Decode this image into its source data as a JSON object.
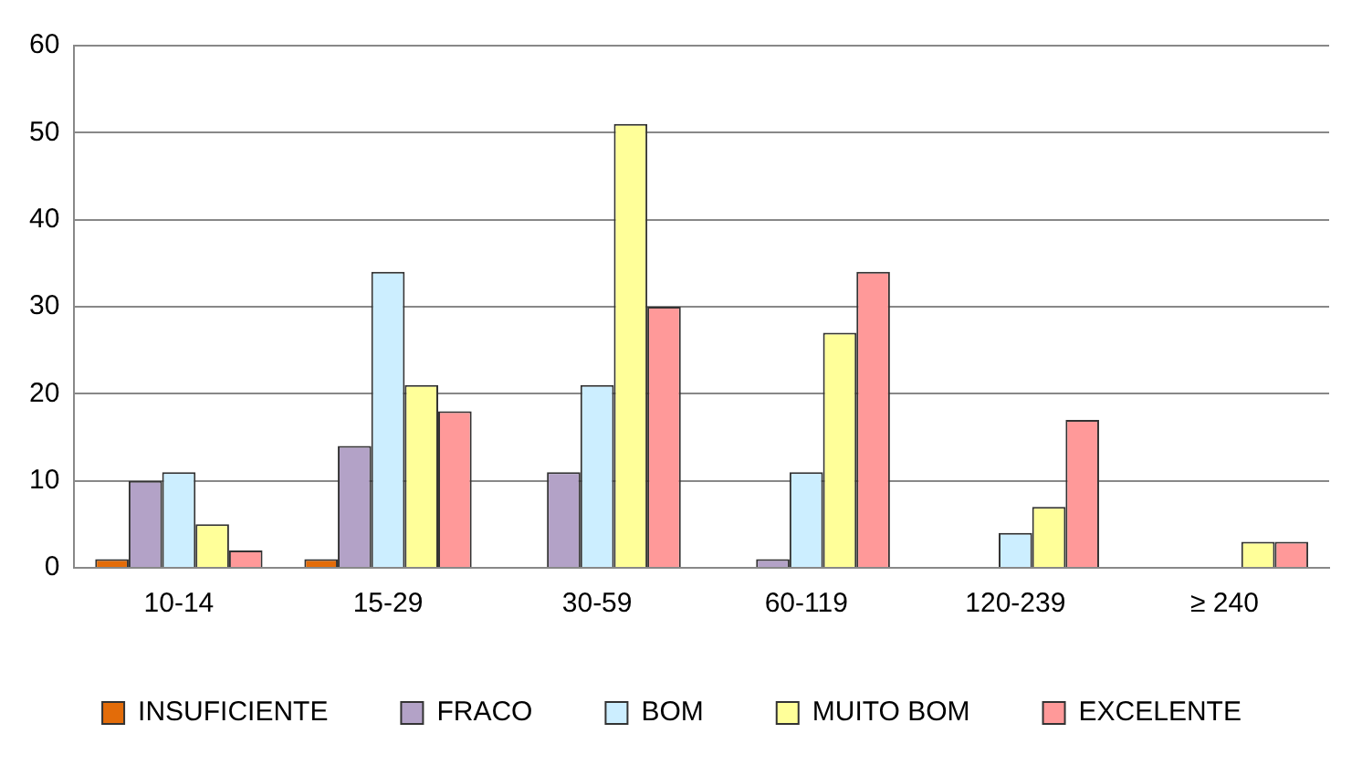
{
  "chart_data": {
    "type": "bar",
    "categories": [
      "10-14",
      "15-29",
      "30-59",
      "60-119",
      "120-239",
      "≥ 240"
    ],
    "series": [
      {
        "name": "INSUFICIENTE",
        "color": "#e36c09",
        "values": [
          1,
          1,
          0,
          0,
          0,
          0
        ]
      },
      {
        "name": "FRACO",
        "color": "#b3a2c7",
        "values": [
          10,
          14,
          11,
          1,
          0,
          0
        ]
      },
      {
        "name": "BOM",
        "color": "#cceeff",
        "values": [
          11,
          34,
          21,
          11,
          4,
          0
        ]
      },
      {
        "name": "MUITO BOM",
        "color": "#ffff99",
        "values": [
          5,
          21,
          51,
          27,
          7,
          3
        ]
      },
      {
        "name": "EXCELENTE",
        "color": "#ff9999",
        "values": [
          2,
          18,
          30,
          34,
          17,
          3
        ]
      }
    ],
    "ylim": [
      0,
      60
    ],
    "yticks": [
      0,
      10,
      20,
      30,
      40,
      50,
      60
    ],
    "grid": "y",
    "legend": "bottom"
  }
}
